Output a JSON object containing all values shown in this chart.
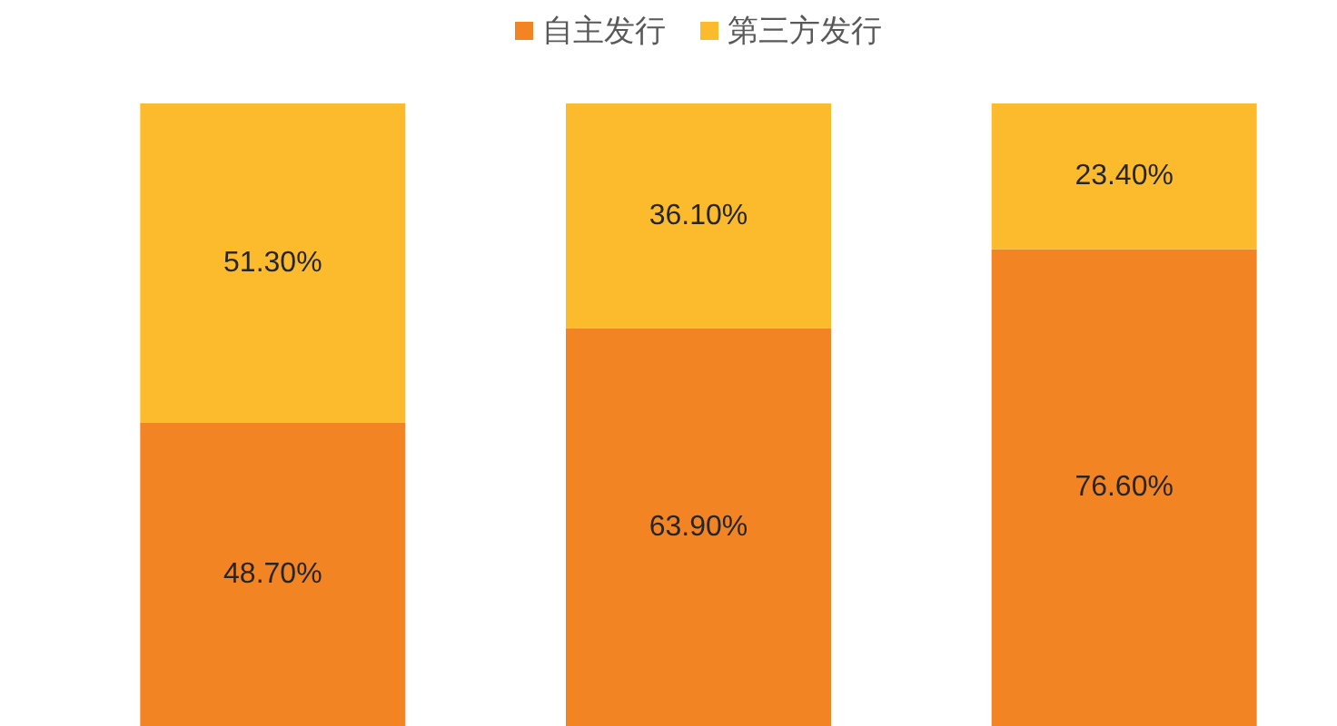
{
  "chart_data": {
    "type": "bar",
    "categories": [
      null,
      null,
      null
    ],
    "stacked": true,
    "ylim": [
      0,
      100
    ],
    "legend": "top",
    "series": [
      {
        "name": "自主发行",
        "color": "#f28424",
        "values": [
          48.7,
          63.9,
          76.6
        ],
        "value_labels": [
          "48.70%",
          "63.90%",
          "76.60%"
        ]
      },
      {
        "name": "第三方发行",
        "color": "#fbbb2c",
        "values": [
          51.3,
          36.1,
          23.4
        ],
        "value_labels": [
          "51.30%",
          "36.10%",
          "23.40%"
        ]
      }
    ]
  }
}
